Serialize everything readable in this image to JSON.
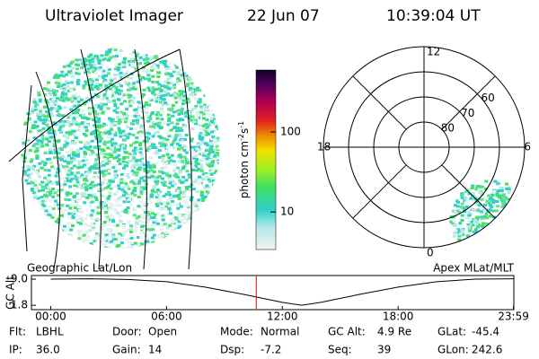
{
  "header": {
    "title": "Ultraviolet Imager",
    "date": "22 Jun 07",
    "time": "10:39:04 UT"
  },
  "colorbar": {
    "label": "photon cm",
    "label_exp1": "-2",
    "label_unit2": "s",
    "label_exp2": "-1",
    "scale": "log",
    "clim": [
      3.4,
      596
    ],
    "ticks": [
      10,
      100
    ]
  },
  "left_panel": {
    "label": "Geographic Lat/Lon"
  },
  "polar": {
    "label": "Apex MLat/MLT",
    "hours": [
      12,
      18,
      6,
      0
    ],
    "rings": [
      80,
      70,
      60
    ],
    "outer_lat": 50
  },
  "chart_data": {
    "type": "line",
    "ylabel": "GC Alt",
    "color": "#000000",
    "marker_color": "#e00000",
    "x": [
      0,
      2,
      4,
      6,
      8,
      10,
      12,
      13,
      14,
      16,
      18,
      20,
      22,
      24
    ],
    "values": [
      9.0,
      9.1,
      8.9,
      8.3,
      6.8,
      4.8,
      2.6,
      1.8,
      2.6,
      4.8,
      6.8,
      8.3,
      9.0,
      9.1
    ],
    "xlim": [
      -1,
      24
    ],
    "ylim": [
      0.6,
      10.0
    ],
    "xticks": [
      {
        "value": 0,
        "label": "00:00"
      },
      {
        "value": 6,
        "label": "06:00"
      },
      {
        "value": 12,
        "label": "12:00"
      },
      {
        "value": 18,
        "label": "18:00"
      },
      {
        "value": 23.98,
        "label": "23:59"
      }
    ],
    "yticks": [
      {
        "value": 1.8,
        "label": "1.8"
      },
      {
        "value": 9.0,
        "label": "9.0"
      }
    ],
    "current_time": 10.65
  },
  "status": [
    [
      {
        "label": "Flt:",
        "value": "LBHL"
      },
      {
        "label": "Door:",
        "value": "Open"
      },
      {
        "label": "Mode:",
        "value": "Normal"
      },
      {
        "label": "GC Alt:",
        "value": "4.9 Re"
      },
      {
        "label": "GLat:",
        "value": "-45.4"
      }
    ],
    [
      {
        "label": "IP:",
        "value": "36.0"
      },
      {
        "label": "Gain:",
        "value": "14"
      },
      {
        "label": "Dsp:",
        "value": "-7.2"
      },
      {
        "label": "Seq:",
        "value": "39"
      },
      {
        "label": "GLon:",
        "value": "242.6"
      }
    ]
  ]
}
